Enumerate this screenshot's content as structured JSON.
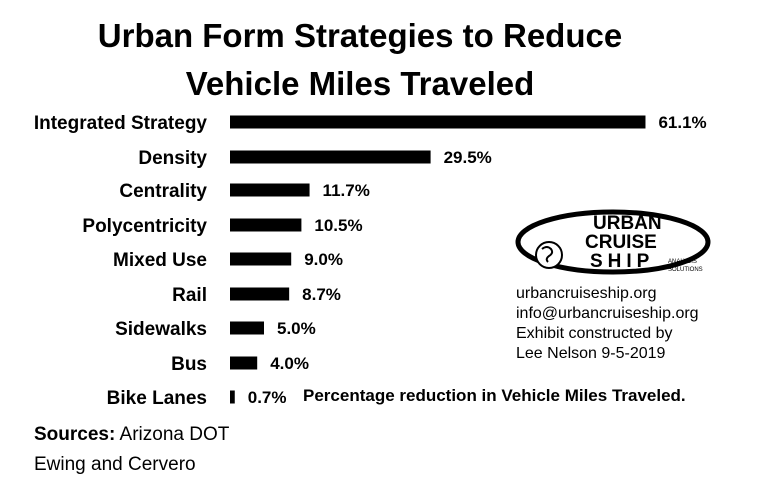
{
  "chart_data": {
    "type": "bar",
    "orientation": "horizontal",
    "title": "Urban Form Strategies to Reduce Vehicle Miles Traveled",
    "title_lines": [
      "Urban Form Strategies to Reduce",
      "Vehicle Miles Traveled"
    ],
    "categories": [
      "Integrated Strategy",
      "Density",
      "Centrality",
      "Polycentricity",
      "Mixed Use",
      "Rail",
      "Sidewalks",
      "Bus",
      "Bike Lanes"
    ],
    "values": [
      61.1,
      29.5,
      11.7,
      10.5,
      9.0,
      8.7,
      5.0,
      4.0,
      0.7
    ],
    "value_labels": [
      "61.1%",
      "29.5%",
      "11.7%",
      "10.5%",
      "9.0%",
      "8.7%",
      "5.0%",
      "4.0%",
      "0.7%"
    ],
    "series_note": "Percentage reduction in Vehicle Miles Traveled.",
    "bar_color": "#000000",
    "grid": false,
    "legend": "none"
  },
  "sources": {
    "label": "Sources:",
    "line1": "Arizona DOT",
    "line2": "Ewing and Cervero"
  },
  "logo": {
    "word1": "URBAN",
    "word2": "CRUISE",
    "word3": "SHIP",
    "tag1": "ANALYSIS",
    "tag2": "SOLUTIONS"
  },
  "info": {
    "website": "urbancruiseship.org",
    "email": "info@urbancruiseship.org",
    "credit1": "Exhibit constructed by",
    "credit2": "Lee Nelson 9-5-2019"
  }
}
